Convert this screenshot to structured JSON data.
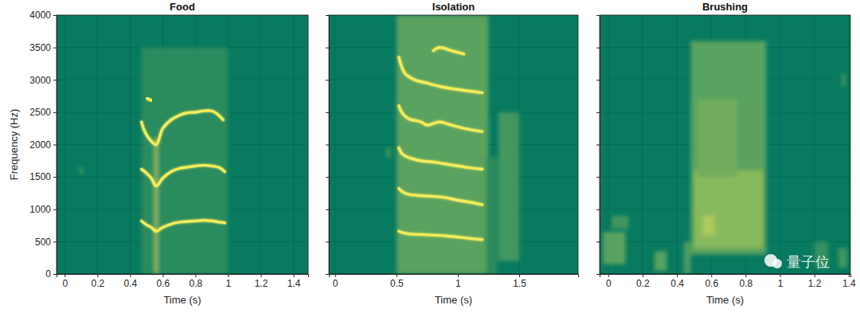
{
  "chart_data": [
    {
      "type": "spectrogram",
      "title": "Food",
      "x_label": "Time (s)",
      "y_label": "Frequency (Hz)",
      "xlim": [
        -0.05,
        1.49
      ],
      "xticks": [
        0,
        0.2,
        0.4,
        0.6,
        0.8,
        1,
        1.2,
        1.4
      ],
      "ylim": [
        0,
        4000
      ],
      "yticks": [
        0,
        500,
        1000,
        1500,
        2000,
        2500,
        3000,
        3500,
        4000
      ],
      "grid": true,
      "color": "#f4ec5a",
      "clim": [
        0,
        1
      ],
      "cells": [
        [
          0.47,
          1.0,
          0,
          3500,
          0.15
        ],
        [
          0.55,
          0.57,
          0,
          2100,
          0.6
        ],
        [
          0.09,
          0.11,
          1550,
          1650,
          0.3
        ]
      ],
      "series": [
        {
          "x": [
            0.47,
            0.5,
            0.53,
            0.56,
            0.6,
            0.65,
            0.7,
            0.75,
            0.8,
            0.85,
            0.9,
            0.95,
            0.98
          ],
          "values": [
            820,
            760,
            720,
            660,
            720,
            770,
            800,
            810,
            820,
            830,
            820,
            800,
            790
          ]
        },
        {
          "x": [
            0.47,
            0.5,
            0.53,
            0.56,
            0.6,
            0.65,
            0.7,
            0.75,
            0.8,
            0.85,
            0.9,
            0.95,
            0.98
          ],
          "values": [
            1620,
            1560,
            1480,
            1360,
            1480,
            1580,
            1630,
            1650,
            1670,
            1680,
            1670,
            1640,
            1580
          ]
        },
        {
          "x": [
            0.47,
            0.49,
            0.52,
            0.56,
            0.6,
            0.65,
            0.7,
            0.75,
            0.8,
            0.85,
            0.9,
            0.93,
            0.97
          ],
          "values": [
            2350,
            2200,
            2080,
            2000,
            2250,
            2380,
            2450,
            2490,
            2500,
            2520,
            2520,
            2480,
            2380
          ]
        },
        {
          "x": [
            0.5,
            0.53
          ],
          "values": [
            2720,
            2680
          ]
        }
      ]
    },
    {
      "type": "spectrogram",
      "title": "Isolation",
      "x_label": "Time (s)",
      "xlim": [
        -0.05,
        1.98
      ],
      "xticks": [
        0,
        0.5,
        1,
        1.5
      ],
      "ylim": [
        0,
        4000
      ],
      "yticks": [
        0,
        500,
        1000,
        1500,
        2000,
        2500,
        3000,
        3500,
        4000
      ],
      "grid": true,
      "tick_labels": "x",
      "color": "#f4ec5a",
      "clim": [
        0,
        1
      ],
      "cells": [
        [
          0.5,
          1.25,
          0,
          4000,
          0.35
        ],
        [
          1.23,
          1.32,
          0,
          1800,
          0.15
        ],
        [
          1.33,
          1.5,
          200,
          2500,
          0.25
        ],
        [
          0.42,
          0.45,
          1800,
          1950,
          0.3
        ]
      ],
      "series": [
        {
          "x": [
            0.52,
            0.55,
            0.6,
            0.7,
            0.8,
            0.9,
            1.0,
            1.1,
            1.2
          ],
          "values": [
            660,
            640,
            620,
            610,
            600,
            590,
            570,
            550,
            530
          ]
        },
        {
          "x": [
            0.52,
            0.55,
            0.6,
            0.7,
            0.8,
            0.9,
            1.0,
            1.1,
            1.2
          ],
          "values": [
            1320,
            1270,
            1230,
            1210,
            1200,
            1180,
            1140,
            1110,
            1070
          ]
        },
        {
          "x": [
            0.52,
            0.55,
            0.6,
            0.7,
            0.8,
            0.9,
            1.0,
            1.1,
            1.2
          ],
          "values": [
            1950,
            1850,
            1800,
            1750,
            1730,
            1700,
            1670,
            1640,
            1620
          ]
        },
        {
          "x": [
            0.52,
            0.55,
            0.6,
            0.7,
            0.75,
            0.85,
            0.95,
            1.05,
            1.2
          ],
          "values": [
            2600,
            2480,
            2400,
            2350,
            2300,
            2350,
            2300,
            2250,
            2200
          ]
        },
        {
          "x": [
            0.52,
            0.57,
            0.65,
            0.75,
            0.85,
            1.0,
            1.2
          ],
          "values": [
            3350,
            3100,
            3000,
            2950,
            2900,
            2850,
            2800
          ]
        },
        {
          "x": [
            0.8,
            0.85,
            0.95,
            1.05
          ],
          "values": [
            3450,
            3500,
            3450,
            3400
          ]
        }
      ]
    },
    {
      "type": "spectrogram",
      "title": "Brushing",
      "x_label": "Time (s)",
      "xlim": [
        -0.05,
        1.41
      ],
      "xticks": [
        0,
        0.2,
        0.4,
        0.6,
        0.8,
        1,
        1.2,
        1.4
      ],
      "ylim": [
        0,
        4000
      ],
      "yticks": [
        0,
        500,
        1000,
        1500,
        2000,
        2500,
        3000,
        3500,
        4000
      ],
      "grid": true,
      "tick_labels": "x",
      "color": "#f4ec5a",
      "clim": [
        0,
        1
      ],
      "watermark": "量子位",
      "cells": [
        [
          0.48,
          0.92,
          300,
          3600,
          0.35
        ],
        [
          0.5,
          0.9,
          400,
          1600,
          0.55
        ],
        [
          0.52,
          0.75,
          1500,
          2700,
          0.45
        ],
        [
          -0.03,
          0.1,
          150,
          650,
          0.35
        ],
        [
          0.02,
          0.12,
          700,
          900,
          0.25
        ],
        [
          0.27,
          0.34,
          50,
          350,
          0.35
        ],
        [
          0.44,
          0.48,
          0,
          500,
          0.3
        ],
        [
          1.2,
          1.28,
          100,
          500,
          0.2
        ],
        [
          1.34,
          1.39,
          100,
          400,
          0.25
        ],
        [
          1.36,
          1.38,
          2900,
          3100,
          0.25
        ],
        [
          0.55,
          0.62,
          600,
          900,
          0.7
        ]
      ],
      "series": []
    }
  ]
}
